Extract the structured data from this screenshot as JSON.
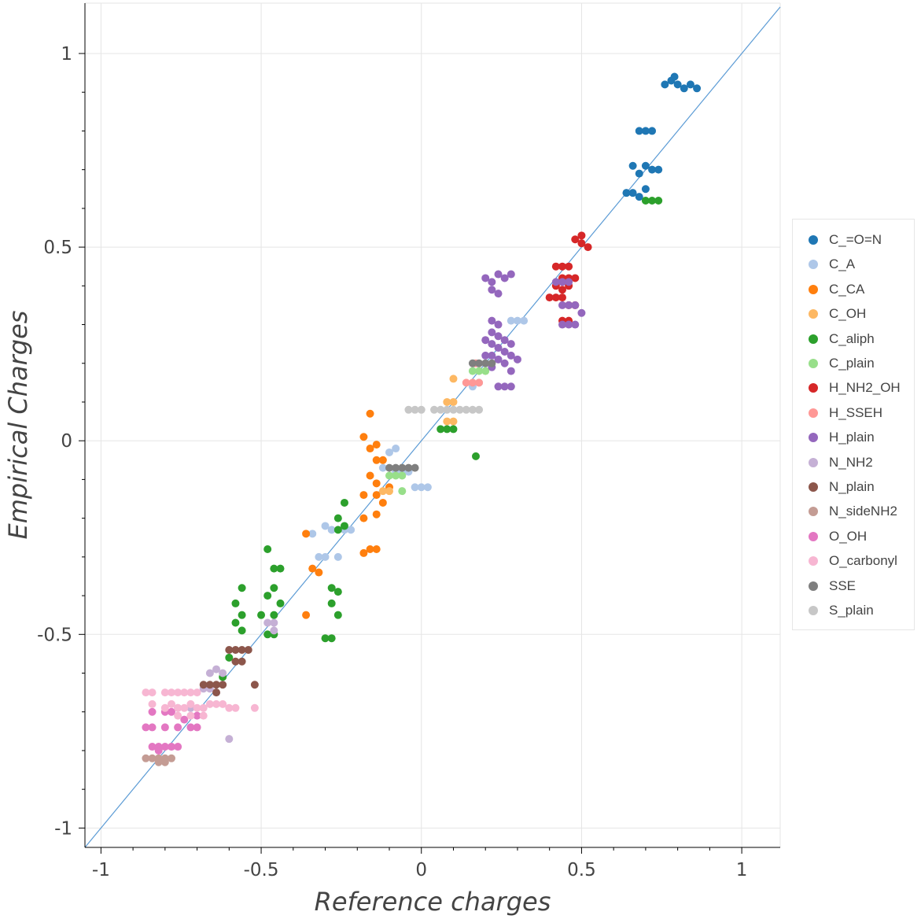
{
  "chart_data": {
    "type": "scatter",
    "xlabel": "Reference charges",
    "ylabel": "Empirical Charges",
    "xlim": [
      -1.05,
      1.12
    ],
    "ylim": [
      -1.05,
      1.13
    ],
    "grid": true,
    "legend_position": "right",
    "x_ticks": [
      {
        "value": -1,
        "label": "-1"
      },
      {
        "value": -0.5,
        "label": "-0.5"
      },
      {
        "value": 0,
        "label": "0"
      },
      {
        "value": 0.5,
        "label": "0.5"
      },
      {
        "value": 1,
        "label": "1"
      }
    ],
    "y_ticks": [
      {
        "value": -1,
        "label": "-1"
      },
      {
        "value": -0.5,
        "label": "-0.5"
      },
      {
        "value": 0,
        "label": "0"
      },
      {
        "value": 0.5,
        "label": "0.5"
      },
      {
        "value": 1,
        "label": "1"
      }
    ],
    "reference_line": {
      "from": [
        -1.05,
        -1.05
      ],
      "to": [
        1.12,
        1.12
      ],
      "color": "#5b9bd5"
    },
    "series": [
      {
        "name": "C_=O=N",
        "color": "#1f77b4",
        "points": [
          [
            0.8,
            0.92
          ],
          [
            0.78,
            0.93
          ],
          [
            0.82,
            0.91
          ],
          [
            0.76,
            0.92
          ],
          [
            0.84,
            0.92
          ],
          [
            0.86,
            0.91
          ],
          [
            0.79,
            0.94
          ],
          [
            0.72,
            0.8
          ],
          [
            0.68,
            0.8
          ],
          [
            0.7,
            0.8
          ],
          [
            0.7,
            0.71
          ],
          [
            0.68,
            0.69
          ],
          [
            0.72,
            0.7
          ],
          [
            0.74,
            0.7
          ],
          [
            0.66,
            0.71
          ],
          [
            0.66,
            0.64
          ],
          [
            0.7,
            0.65
          ],
          [
            0.64,
            0.64
          ],
          [
            0.68,
            0.63
          ]
        ]
      },
      {
        "name": "C_A",
        "color": "#aec7e8",
        "points": [
          [
            0.28,
            0.31
          ],
          [
            0.3,
            0.31
          ],
          [
            0.32,
            0.31
          ],
          [
            0.16,
            0.14
          ],
          [
            0.18,
            0.15
          ],
          [
            -0.08,
            -0.02
          ],
          [
            -0.1,
            -0.03
          ],
          [
            -0.12,
            -0.07
          ],
          [
            -0.08,
            -0.08
          ],
          [
            -0.06,
            -0.08
          ],
          [
            -0.04,
            -0.08
          ],
          [
            -0.02,
            -0.12
          ],
          [
            0.0,
            -0.12
          ],
          [
            0.02,
            -0.12
          ],
          [
            -0.28,
            -0.23
          ],
          [
            -0.24,
            -0.23
          ],
          [
            -0.22,
            -0.23
          ],
          [
            -0.3,
            -0.22
          ],
          [
            -0.32,
            -0.3
          ],
          [
            -0.3,
            -0.3
          ],
          [
            -0.26,
            -0.3
          ],
          [
            -0.34,
            -0.24
          ]
        ]
      },
      {
        "name": "C_CA",
        "color": "#ff7f0e",
        "points": [
          [
            -0.16,
            0.07
          ],
          [
            -0.18,
            0.01
          ],
          [
            -0.16,
            -0.02
          ],
          [
            -0.14,
            -0.01
          ],
          [
            -0.14,
            -0.05
          ],
          [
            -0.12,
            -0.05
          ],
          [
            -0.16,
            -0.09
          ],
          [
            -0.14,
            -0.11
          ],
          [
            -0.18,
            -0.14
          ],
          [
            -0.14,
            -0.14
          ],
          [
            -0.1,
            -0.12
          ],
          [
            -0.12,
            -0.16
          ],
          [
            -0.14,
            -0.19
          ],
          [
            -0.18,
            -0.2
          ],
          [
            -0.16,
            -0.28
          ],
          [
            -0.14,
            -0.28
          ],
          [
            -0.18,
            -0.29
          ],
          [
            -0.36,
            -0.24
          ],
          [
            -0.34,
            -0.33
          ],
          [
            -0.32,
            -0.34
          ],
          [
            -0.36,
            -0.45
          ]
        ]
      },
      {
        "name": "C_OH",
        "color": "#fdb863",
        "points": [
          [
            0.1,
            0.1
          ],
          [
            0.08,
            0.1
          ],
          [
            0.1,
            0.05
          ],
          [
            0.08,
            0.05
          ],
          [
            0.1,
            0.16
          ],
          [
            -0.12,
            -0.13
          ],
          [
            -0.1,
            -0.13
          ]
        ]
      },
      {
        "name": "C_aliph",
        "color": "#2ca02c",
        "points": [
          [
            0.7,
            0.62
          ],
          [
            0.72,
            0.62
          ],
          [
            0.74,
            0.62
          ],
          [
            0.06,
            0.03
          ],
          [
            0.08,
            0.03
          ],
          [
            0.1,
            0.03
          ],
          [
            0.17,
            -0.04
          ],
          [
            -0.24,
            -0.16
          ],
          [
            -0.26,
            -0.2
          ],
          [
            -0.24,
            -0.22
          ],
          [
            -0.26,
            -0.23
          ],
          [
            -0.46,
            -0.33
          ],
          [
            -0.44,
            -0.33
          ],
          [
            -0.48,
            -0.28
          ],
          [
            -0.46,
            -0.38
          ],
          [
            -0.48,
            -0.4
          ],
          [
            -0.44,
            -0.42
          ],
          [
            -0.46,
            -0.45
          ],
          [
            -0.5,
            -0.45
          ],
          [
            -0.48,
            -0.5
          ],
          [
            -0.46,
            -0.5
          ],
          [
            -0.56,
            -0.38
          ],
          [
            -0.58,
            -0.42
          ],
          [
            -0.56,
            -0.45
          ],
          [
            -0.58,
            -0.47
          ],
          [
            -0.56,
            -0.49
          ],
          [
            -0.6,
            -0.56
          ],
          [
            -0.62,
            -0.61
          ],
          [
            -0.28,
            -0.38
          ],
          [
            -0.26,
            -0.39
          ],
          [
            -0.28,
            -0.42
          ],
          [
            -0.26,
            -0.45
          ],
          [
            -0.28,
            -0.51
          ],
          [
            -0.3,
            -0.51
          ]
        ]
      },
      {
        "name": "C_plain",
        "color": "#98df8a",
        "points": [
          [
            0.16,
            0.18
          ],
          [
            0.18,
            0.18
          ],
          [
            0.2,
            0.18
          ],
          [
            -0.08,
            -0.09
          ],
          [
            -0.1,
            -0.09
          ],
          [
            -0.06,
            -0.09
          ],
          [
            -0.06,
            -0.13
          ]
        ]
      },
      {
        "name": "H_NH2_OH",
        "color": "#d62728",
        "points": [
          [
            0.48,
            0.52
          ],
          [
            0.5,
            0.51
          ],
          [
            0.52,
            0.5
          ],
          [
            0.5,
            0.53
          ],
          [
            0.42,
            0.45
          ],
          [
            0.44,
            0.45
          ],
          [
            0.46,
            0.45
          ],
          [
            0.44,
            0.42
          ],
          [
            0.46,
            0.42
          ],
          [
            0.48,
            0.42
          ],
          [
            0.42,
            0.4
          ],
          [
            0.44,
            0.39
          ],
          [
            0.46,
            0.4
          ],
          [
            0.4,
            0.37
          ],
          [
            0.42,
            0.37
          ],
          [
            0.44,
            0.37
          ],
          [
            0.46,
            0.35
          ],
          [
            0.48,
            0.35
          ],
          [
            0.44,
            0.31
          ],
          [
            0.46,
            0.31
          ]
        ]
      },
      {
        "name": "H_SSEH",
        "color": "#ff9896",
        "points": [
          [
            0.14,
            0.15
          ],
          [
            0.16,
            0.15
          ],
          [
            0.18,
            0.15
          ],
          [
            0.17,
            0.2
          ]
        ]
      },
      {
        "name": "H_plain",
        "color": "#9467bd",
        "points": [
          [
            0.2,
            0.42
          ],
          [
            0.22,
            0.41
          ],
          [
            0.24,
            0.43
          ],
          [
            0.26,
            0.42
          ],
          [
            0.28,
            0.43
          ],
          [
            0.22,
            0.39
          ],
          [
            0.24,
            0.38
          ],
          [
            0.22,
            0.31
          ],
          [
            0.24,
            0.3
          ],
          [
            0.22,
            0.28
          ],
          [
            0.24,
            0.27
          ],
          [
            0.26,
            0.26
          ],
          [
            0.28,
            0.25
          ],
          [
            0.22,
            0.25
          ],
          [
            0.24,
            0.24
          ],
          [
            0.26,
            0.23
          ],
          [
            0.28,
            0.22
          ],
          [
            0.3,
            0.21
          ],
          [
            0.22,
            0.22
          ],
          [
            0.24,
            0.21
          ],
          [
            0.26,
            0.2
          ],
          [
            0.2,
            0.26
          ],
          [
            0.2,
            0.22
          ],
          [
            0.26,
            0.14
          ],
          [
            0.28,
            0.14
          ],
          [
            0.24,
            0.14
          ],
          [
            0.22,
            0.19
          ],
          [
            0.28,
            0.18
          ],
          [
            0.42,
            0.41
          ],
          [
            0.44,
            0.41
          ],
          [
            0.46,
            0.41
          ],
          [
            0.44,
            0.35
          ],
          [
            0.46,
            0.35
          ],
          [
            0.48,
            0.35
          ],
          [
            0.44,
            0.3
          ],
          [
            0.46,
            0.3
          ],
          [
            0.48,
            0.3
          ],
          [
            0.5,
            0.33
          ]
        ]
      },
      {
        "name": "N_NH2",
        "color": "#c5b0d5",
        "points": [
          [
            -0.46,
            -0.47
          ],
          [
            -0.48,
            -0.47
          ],
          [
            -0.46,
            -0.49
          ],
          [
            -0.64,
            -0.59
          ],
          [
            -0.66,
            -0.6
          ],
          [
            -0.62,
            -0.6
          ],
          [
            -0.66,
            -0.64
          ],
          [
            -0.68,
            -0.64
          ],
          [
            -0.64,
            -0.65
          ],
          [
            -0.6,
            -0.77
          ],
          [
            -0.76,
            -0.69
          ],
          [
            -0.72,
            -0.69
          ]
        ]
      },
      {
        "name": "N_plain",
        "color": "#8c564b",
        "points": [
          [
            -0.6,
            -0.54
          ],
          [
            -0.58,
            -0.54
          ],
          [
            -0.56,
            -0.54
          ],
          [
            -0.54,
            -0.54
          ],
          [
            -0.58,
            -0.57
          ],
          [
            -0.56,
            -0.57
          ],
          [
            -0.52,
            -0.63
          ],
          [
            -0.64,
            -0.63
          ],
          [
            -0.62,
            -0.63
          ],
          [
            -0.66,
            -0.63
          ],
          [
            -0.68,
            -0.63
          ],
          [
            -0.64,
            -0.65
          ]
        ]
      },
      {
        "name": "N_sideNH2",
        "color": "#c49c94",
        "points": [
          [
            -0.86,
            -0.82
          ],
          [
            -0.84,
            -0.82
          ],
          [
            -0.82,
            -0.82
          ],
          [
            -0.8,
            -0.82
          ],
          [
            -0.78,
            -0.82
          ],
          [
            -0.82,
            -0.83
          ],
          [
            -0.8,
            -0.83
          ]
        ]
      },
      {
        "name": "O_OH",
        "color": "#e377c2",
        "points": [
          [
            -0.86,
            -0.74
          ],
          [
            -0.84,
            -0.74
          ],
          [
            -0.8,
            -0.74
          ],
          [
            -0.76,
            -0.74
          ],
          [
            -0.72,
            -0.74
          ],
          [
            -0.7,
            -0.74
          ],
          [
            -0.84,
            -0.79
          ],
          [
            -0.82,
            -0.79
          ],
          [
            -0.8,
            -0.79
          ],
          [
            -0.78,
            -0.79
          ],
          [
            -0.76,
            -0.79
          ],
          [
            -0.82,
            -0.8
          ],
          [
            -0.84,
            -0.7
          ],
          [
            -0.8,
            -0.7
          ],
          [
            -0.78,
            -0.7
          ],
          [
            -0.74,
            -0.72
          ],
          [
            -0.7,
            -0.71
          ]
        ]
      },
      {
        "name": "O_carbonyl",
        "color": "#f7b6d2",
        "points": [
          [
            -0.86,
            -0.65
          ],
          [
            -0.84,
            -0.65
          ],
          [
            -0.8,
            -0.65
          ],
          [
            -0.78,
            -0.65
          ],
          [
            -0.76,
            -0.65
          ],
          [
            -0.74,
            -0.65
          ],
          [
            -0.72,
            -0.65
          ],
          [
            -0.7,
            -0.65
          ],
          [
            -0.84,
            -0.68
          ],
          [
            -0.8,
            -0.69
          ],
          [
            -0.78,
            -0.68
          ],
          [
            -0.76,
            -0.69
          ],
          [
            -0.74,
            -0.69
          ],
          [
            -0.72,
            -0.68
          ],
          [
            -0.7,
            -0.69
          ],
          [
            -0.68,
            -0.69
          ],
          [
            -0.66,
            -0.68
          ],
          [
            -0.64,
            -0.68
          ],
          [
            -0.62,
            -0.68
          ],
          [
            -0.6,
            -0.69
          ],
          [
            -0.58,
            -0.69
          ],
          [
            -0.52,
            -0.69
          ],
          [
            -0.76,
            -0.71
          ],
          [
            -0.72,
            -0.71
          ],
          [
            -0.68,
            -0.71
          ]
        ]
      },
      {
        "name": "SSE",
        "color": "#7f7f7f",
        "points": [
          [
            0.16,
            0.2
          ],
          [
            0.18,
            0.2
          ],
          [
            0.2,
            0.2
          ],
          [
            0.22,
            0.2
          ],
          [
            -0.1,
            -0.07
          ],
          [
            -0.08,
            -0.07
          ],
          [
            -0.06,
            -0.07
          ],
          [
            -0.04,
            -0.07
          ],
          [
            -0.02,
            -0.07
          ]
        ]
      },
      {
        "name": "S_plain",
        "color": "#c7c7c7",
        "points": [
          [
            -0.04,
            0.08
          ],
          [
            -0.02,
            0.08
          ],
          [
            0.0,
            0.08
          ],
          [
            0.04,
            0.08
          ],
          [
            0.06,
            0.08
          ],
          [
            0.08,
            0.08
          ],
          [
            0.1,
            0.08
          ],
          [
            0.12,
            0.08
          ],
          [
            0.14,
            0.08
          ],
          [
            0.16,
            0.08
          ],
          [
            0.18,
            0.08
          ]
        ]
      }
    ]
  }
}
